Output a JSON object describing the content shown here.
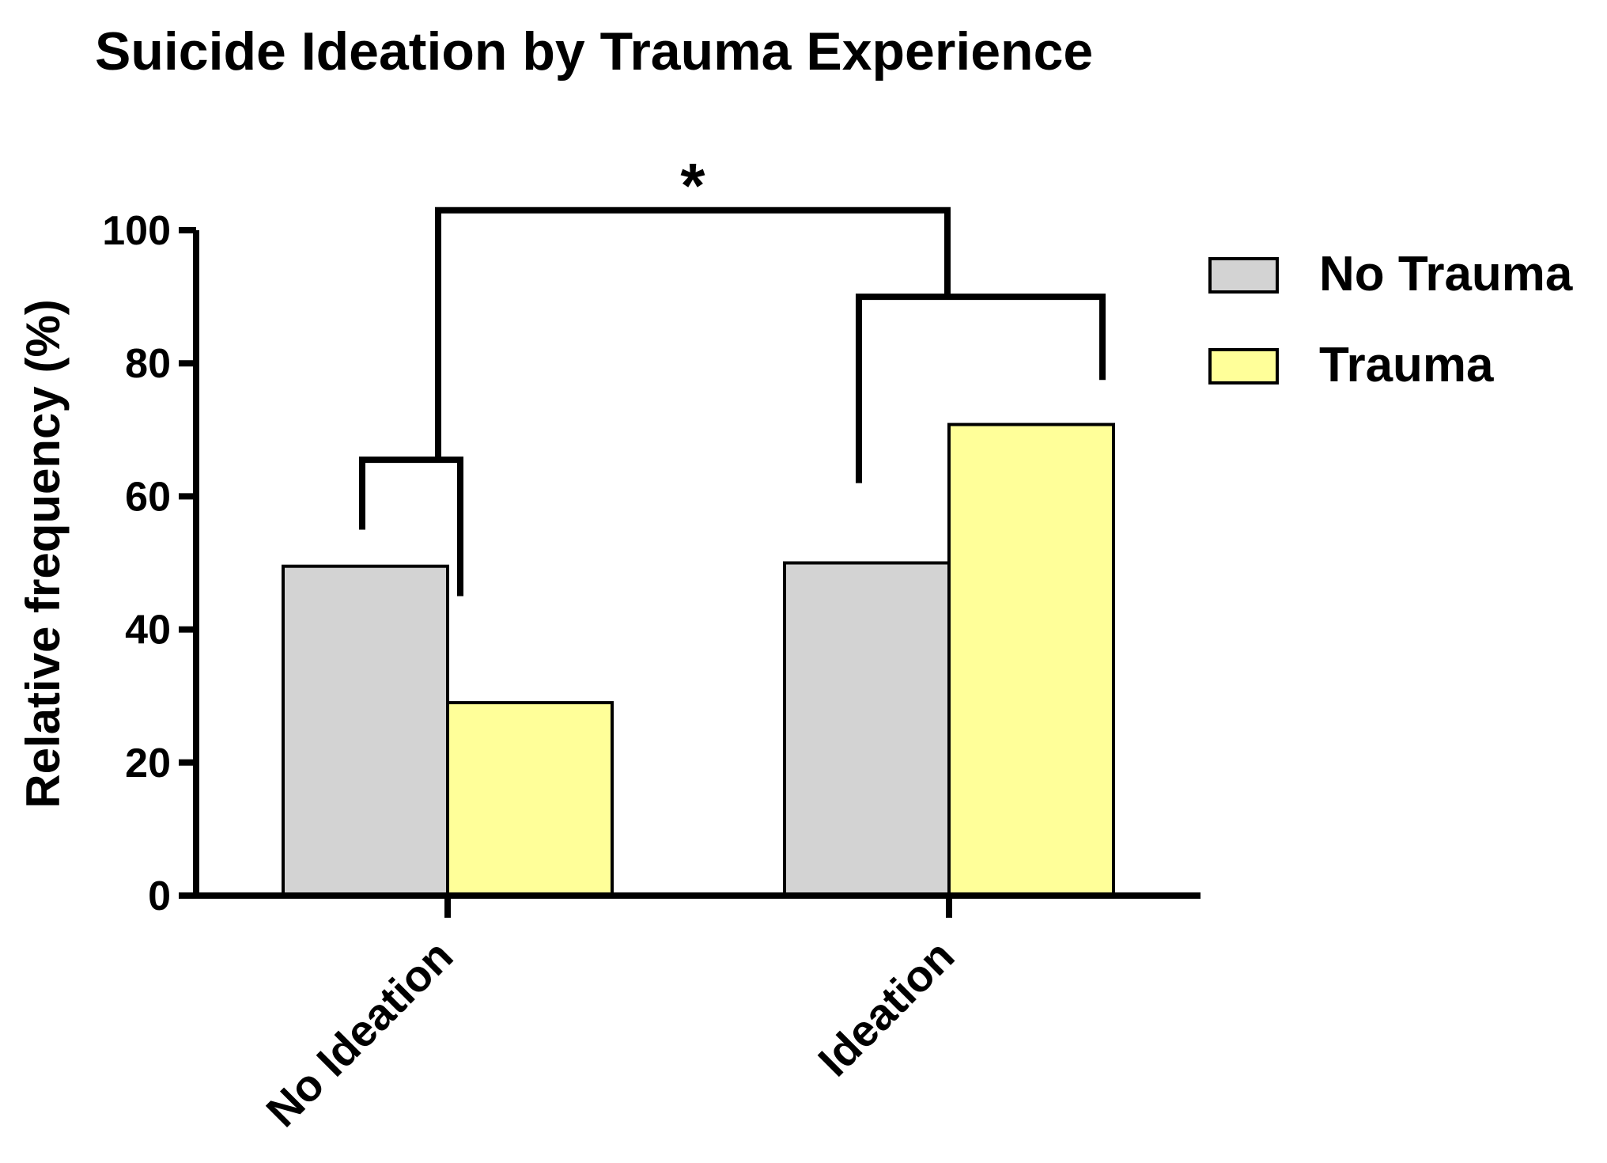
{
  "chart_data": {
    "type": "bar",
    "title": "Suicide Ideation by Trauma Experience",
    "xlabel": "",
    "ylabel": "Relative frequency (%)",
    "ylim": [
      0,
      100
    ],
    "yticks": [
      0,
      20,
      40,
      60,
      80,
      100
    ],
    "categories": [
      "No Ideation",
      "Ideation"
    ],
    "series": [
      {
        "name": "No Trauma",
        "values": [
          49.5,
          50.0
        ],
        "color": "#d3d3d3"
      },
      {
        "name": "Trauma",
        "values": [
          29.0,
          70.8
        ],
        "color": "#ffff99"
      }
    ],
    "legend_position": "right",
    "grid": false,
    "significance": {
      "marker": "*",
      "bracket_heights": {
        "no_ideation": 65.5,
        "ideation": 90,
        "top": 103
      },
      "bracket_leg_ends": {
        "no_trauma_no_ideation": 55,
        "trauma_no_ideation": 45,
        "no_trauma_ideation": 62,
        "trauma_ideation": 77.5
      }
    }
  }
}
